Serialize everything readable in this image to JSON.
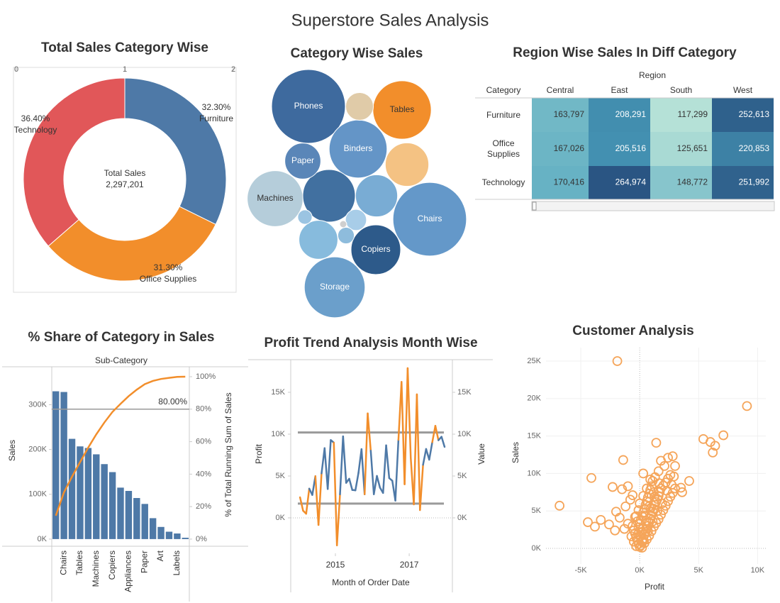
{
  "title": "Superstore Sales Analysis",
  "chart_data": [
    {
      "type": "pie",
      "title": "Total Sales Category Wise",
      "categories": [
        "Furniture",
        "Office Supplies",
        "Technology"
      ],
      "values": [
        32.3,
        31.3,
        36.4
      ],
      "value_labels": [
        "32.30%",
        "31.30%",
        "36.40%"
      ],
      "colors": [
        "#4e79a7",
        "#f28e2b",
        "#e15759"
      ],
      "center_label": "Total Sales",
      "center_value": "2,297,201",
      "xlim": [
        0,
        2
      ],
      "xticks": [
        0,
        1,
        2
      ]
    },
    {
      "type": "bubble",
      "title": "Category Wise Sales",
      "categories": [
        "Phones",
        "Chairs",
        "Storage",
        "Tables",
        "Binders",
        "Machines",
        null,
        "Copiers",
        null,
        null,
        null,
        "Paper",
        null,
        null,
        null,
        null,
        null
      ],
      "values": [
        330007,
        328449,
        223844,
        206966,
        203413,
        189239,
        167380,
        149528,
        114880,
        107532,
        91705,
        78479,
        46674,
        27119,
        16476,
        12486,
        3024
      ],
      "colors": [
        "#3e6a9e",
        "#6498c9",
        "#6b9fcb",
        "#f28e2b",
        "#6495c7",
        "#b5cdda",
        "#4170a0",
        "#2d5a8a",
        "#f4c283",
        "#79acd4",
        "#87bbdd",
        "#5a86b8",
        "#e0cba8",
        "#a8cde8",
        "#8ebcdc",
        "#9bc4e2",
        "#cfcfcf"
      ]
    },
    {
      "type": "heatmap",
      "title": "Region Wise Sales In Diff Category",
      "column_header": "Region",
      "row_header": "Category",
      "columns": [
        "Central",
        "East",
        "South",
        "West"
      ],
      "rows": [
        "Furniture",
        "Office Supplies",
        "Technology"
      ],
      "values": [
        [
          163797,
          208291,
          117299,
          252613
        ],
        [
          167026,
          205516,
          125651,
          220853
        ],
        [
          170416,
          264974,
          148772,
          251992
        ]
      ],
      "value_labels": [
        [
          "163,797",
          "208,291",
          "117,299",
          "252,613"
        ],
        [
          "167,026",
          "205,516",
          "125,651",
          "220,853"
        ],
        [
          "170,416",
          "264,974",
          "148,772",
          "251,992"
        ]
      ],
      "color_range": [
        110000,
        270000
      ],
      "colors": [
        "#c0e8da",
        "#4aa0bd",
        "#28507f"
      ]
    },
    {
      "type": "bar",
      "title": "% Share of Category in Sales",
      "header": "Sub-Category",
      "categories": [
        null,
        "Chairs",
        null,
        "Tables",
        null,
        "Machines",
        null,
        "Copiers",
        null,
        "Appliances",
        null,
        "Paper",
        null,
        "Art",
        null,
        "Labels",
        null
      ],
      "series": [
        {
          "name": "Sales",
          "color": "#4e79a7",
          "values": [
            330007,
            328449,
            223844,
            206966,
            203413,
            189239,
            167380,
            149528,
            114880,
            107532,
            91705,
            78479,
            46674,
            27119,
            16476,
            12486,
            3024
          ]
        },
        {
          "name": "% of Total Running Sum of Sales",
          "color": "#f28e2b",
          "axis": "y2",
          "values": [
            14.4,
            28.7,
            38.4,
            47.4,
            56.3,
            64.5,
            71.8,
            78.3,
            83.3,
            88.0,
            92.0,
            95.4,
            97.4,
            98.6,
            99.3,
            99.9,
            100
          ]
        }
      ],
      "ylim": [
        -16000,
        380000
      ],
      "yticks": [
        {
          "value": 0,
          "label": "0K"
        },
        {
          "value": 100000,
          "label": "100K"
        },
        {
          "value": 200000,
          "label": "200K"
        },
        {
          "value": 300000,
          "label": "300K"
        }
      ],
      "y2lim": [
        -4.4,
        104.8
      ],
      "y2ticks": [
        {
          "value": 0,
          "label": "0%"
        },
        {
          "value": 20,
          "label": "20%"
        },
        {
          "value": 40,
          "label": "40%"
        },
        {
          "value": 60,
          "label": "60%"
        },
        {
          "value": 80,
          "label": "80%"
        },
        {
          "value": 100,
          "label": "100%"
        }
      ],
      "reference_line": {
        "value": 80,
        "label": "80.00%",
        "axis": "y2"
      }
    },
    {
      "type": "line",
      "title": "Profit Trend Analysis Month Wise",
      "x_label": "Month of Order Date",
      "y2_label": "Value",
      "x": [
        2014.042,
        2014.125,
        2014.208,
        2014.292,
        2014.375,
        2014.458,
        2014.542,
        2014.625,
        2014.708,
        2014.792,
        2014.875,
        2014.958,
        2015.042,
        2015.125,
        2015.208,
        2015.292,
        2015.375,
        2015.458,
        2015.542,
        2015.625,
        2015.708,
        2015.792,
        2015.875,
        2015.958,
        2016.042,
        2016.125,
        2016.208,
        2016.292,
        2016.375,
        2016.458,
        2016.542,
        2016.625,
        2016.708,
        2016.792,
        2016.875,
        2016.958,
        2017.042,
        2017.125,
        2017.208,
        2017.292,
        2017.375,
        2017.458,
        2017.542,
        2017.625,
        2017.708,
        2017.792,
        2017.875,
        2017.958
      ],
      "series": [
        {
          "name": "Profit",
          "color": "#4e79a7",
          "values": [
            2450,
            862,
            498,
            3489,
            2739,
            4977,
            -841,
            5318,
            8328,
            3448,
            9292,
            8983,
            -3281,
            2814,
            9732,
            4187,
            4668,
            3335,
            3289,
            5355,
            8210,
            2817,
            12475,
            8016,
            2824,
            5004,
            3611,
            2978,
            8662,
            4750,
            4433,
            2062,
            9329,
            16243,
            4011,
            17885,
            7140,
            1614,
            14752,
            933,
            6342,
            8224,
            6952,
            9040,
            10991,
            9275,
            9690,
            8483
          ]
        }
      ],
      "highlight_color": "#f28e2b",
      "reference_lines": [
        10200,
        1700
      ],
      "reference_color": "#9a9a9a",
      "xlim": [
        2013.79,
        2018.17
      ],
      "xticks": [
        2015,
        2017
      ],
      "ylim": [
        -4240,
        18900
      ],
      "yticks": [
        {
          "value": 0,
          "label": "0K"
        },
        {
          "value": 5000,
          "label": "5K"
        },
        {
          "value": 10000,
          "label": "10K"
        },
        {
          "value": 15000,
          "label": "15K"
        }
      ],
      "y2lim": [
        -4240,
        18900
      ],
      "y2ticks": [
        {
          "value": 0,
          "label": "0K"
        },
        {
          "value": 5000,
          "label": "5K"
        },
        {
          "value": 10000,
          "label": "10K"
        },
        {
          "value": 15000,
          "label": "15K"
        }
      ]
    },
    {
      "type": "scatter",
      "title": "Customer Analysis",
      "x_label": "Profit",
      "y_label": "Sales",
      "color": "#f5a55a",
      "grid": true,
      "x": [
        -1900,
        9100,
        7100,
        5400,
        6000,
        6400,
        6200,
        -6800,
        -4100,
        -1400,
        -3300,
        -2300,
        1400,
        300,
        -1000,
        -1500,
        4200,
        2400,
        2800,
        3000,
        -4400,
        -2600,
        -3800,
        -1200,
        -600,
        -800,
        3500,
        3600,
        2900,
        2100,
        1800,
        1600,
        -2000,
        -1700,
        -1300,
        -300,
        -2100,
        -1000,
        0,
        100,
        200,
        300,
        400,
        500,
        600,
        700,
        800,
        900,
        1000,
        1100,
        1200,
        1300,
        1400,
        1500,
        1600,
        1700,
        1800,
        2000,
        2200,
        2400,
        2600,
        -100,
        -200,
        -300,
        -400,
        -500,
        -100,
        0,
        100,
        200,
        300,
        400,
        500,
        600,
        700,
        800,
        900,
        1000,
        1100,
        1300,
        -200,
        -400,
        -600,
        -700,
        -500,
        -300,
        200,
        400,
        600,
        800,
        1000,
        1200,
        1400,
        1600,
        1800,
        2000,
        2200,
        2400,
        2600,
        2800,
        3000,
        1900,
        1500,
        1100,
        700,
        300,
        50,
        150,
        250,
        -150,
        550,
        950,
        1250,
        1650,
        2300,
        2700,
        500,
        800,
        1200,
        -100,
        0,
        300,
        600,
        900
      ],
      "y": [
        25000,
        19000,
        15100,
        14600,
        14200,
        13700,
        12800,
        5700,
        9400,
        11800,
        3800,
        8200,
        14100,
        10000,
        8300,
        7900,
        9000,
        12100,
        12300,
        11000,
        3500,
        3200,
        2900,
        5600,
        7100,
        6500,
        8100,
        7500,
        9600,
        11000,
        11700,
        10300,
        4900,
        4100,
        2600,
        4300,
        2400,
        3300,
        200,
        400,
        900,
        1300,
        1800,
        2200,
        2600,
        3000,
        3500,
        4000,
        4400,
        4900,
        5300,
        5800,
        6200,
        6600,
        7000,
        7500,
        8000,
        8400,
        8800,
        9300,
        9800,
        600,
        1100,
        1500,
        2000,
        2400,
        2800,
        3300,
        3800,
        4300,
        4800,
        5300,
        5800,
        6300,
        6800,
        7300,
        7800,
        8300,
        9000,
        9500,
        3600,
        4200,
        3000,
        1600,
        900,
        300,
        100,
        700,
        1200,
        1700,
        2300,
        2900,
        3400,
        3900,
        4500,
        5100,
        5700,
        6300,
        6900,
        7400,
        8000,
        6000,
        5000,
        3600,
        2300,
        1000,
        1600,
        2100,
        2600,
        1900,
        3700,
        5400,
        6900,
        8700,
        7700,
        8500,
        4400,
        5600,
        7500,
        5100,
        6000,
        7000,
        8000,
        9200
      ],
      "xlim": [
        -7950,
        10700
      ],
      "xticks": [
        {
          "value": -5000,
          "label": "-5K"
        },
        {
          "value": 0,
          "label": "0K"
        },
        {
          "value": 5000,
          "label": "5K"
        },
        {
          "value": 10000,
          "label": "10K"
        }
      ],
      "ylim": [
        -2080,
        26800
      ],
      "yticks": [
        {
          "value": 0,
          "label": "0K"
        },
        {
          "value": 5000,
          "label": "5K"
        },
        {
          "value": 10000,
          "label": "10K"
        },
        {
          "value": 15000,
          "label": "15K"
        },
        {
          "value": 20000,
          "label": "20K"
        },
        {
          "value": 25000,
          "label": "25K"
        }
      ]
    }
  ]
}
